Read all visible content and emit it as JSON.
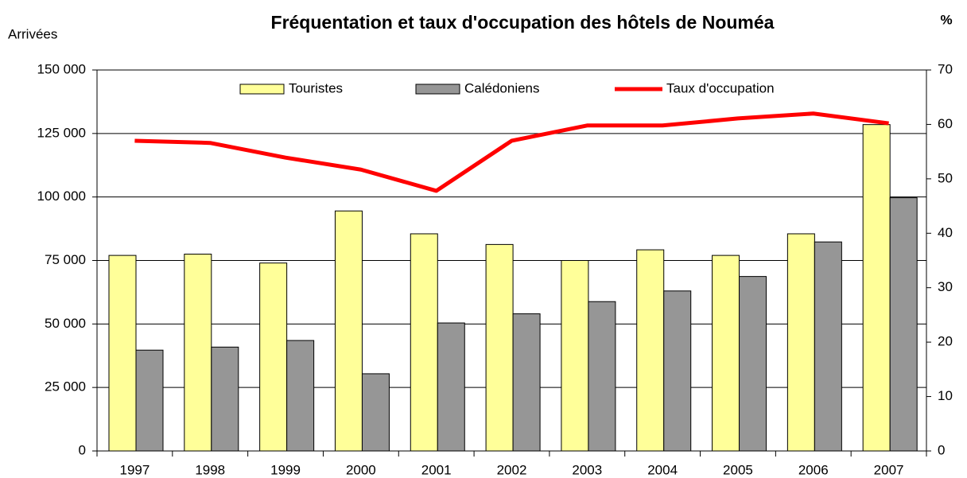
{
  "chart_data": {
    "type": "bar",
    "title": "Fréquentation et taux d'occupation des hôtels de Nouméa",
    "y_label": "Arrivées",
    "y2_label": "%",
    "categories": [
      "1997",
      "1998",
      "1999",
      "2000",
      "2001",
      "2002",
      "2003",
      "2004",
      "2005",
      "2006",
      "2007"
    ],
    "series": [
      {
        "name": "Touristes",
        "color": "#ffff99",
        "type": "bar",
        "values": [
          77000,
          77500,
          74000,
          94500,
          85500,
          81300,
          75000,
          79200,
          77000,
          85500,
          128500
        ]
      },
      {
        "name": "Calédoniens",
        "color": "#969696",
        "type": "bar",
        "values": [
          39700,
          40900,
          43500,
          30400,
          50400,
          54000,
          58800,
          63000,
          68700,
          82300,
          99700
        ]
      },
      {
        "name": "Taux d'occupation",
        "color": "#ff0000",
        "type": "line",
        "axis": "y2",
        "values": [
          57.0,
          56.6,
          53.9,
          51.7,
          47.8,
          57.0,
          59.8,
          59.8,
          61.1,
          62.0,
          60.2
        ]
      }
    ],
    "ylim": [
      0,
      150000
    ],
    "yticks": [
      0,
      {
        "value": 25000,
        "label": "25 000"
      },
      {
        "value": 50000,
        "label": "50 000"
      },
      {
        "value": 75000,
        "label": "75 000"
      },
      {
        "value": 100000,
        "label": "100 000"
      },
      {
        "value": 125000,
        "label": "125 000"
      },
      {
        "value": 150000,
        "label": "150 000"
      }
    ],
    "y2lim": [
      0,
      70
    ],
    "y2ticks": [
      0,
      10,
      20,
      30,
      40,
      50,
      60,
      70
    ],
    "grid": true,
    "legend": "top"
  }
}
